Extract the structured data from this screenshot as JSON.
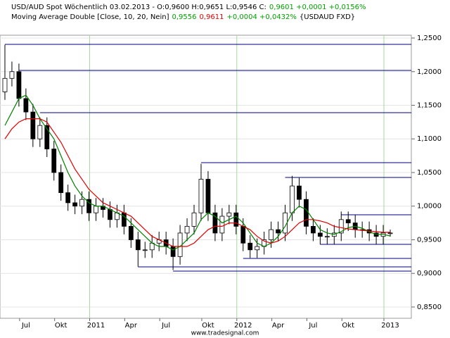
{
  "chart_data": {
    "type": "candlestick",
    "header": {
      "line1": [
        {
          "text": "USD/AUD Spot Wöchentlich  03.02.2013 - O:0,9600 H:0,9651 L:0,9546 C:",
          "color": "#000000"
        },
        {
          "text": "0,9601 +0,0001 +0,0156%",
          "color": "#00a000"
        }
      ],
      "line2": [
        {
          "text": "Moving Average Double [Close, 10, 20, Nein]",
          "color": "#000000"
        },
        {
          "text": "0,9556",
          "color": "#00a000"
        },
        {
          "text": "0,9611",
          "color": "#e00000"
        },
        {
          "text": "+0,0004 +0,0432%",
          "color": "#00a000"
        },
        {
          "text": "{USDAUD FXD}",
          "color": "#000000"
        }
      ]
    },
    "footer": "www.tradesignal.com",
    "categories": [
      null,
      null,
      null,
      "Jul",
      null,
      null,
      null,
      null,
      "Okt",
      null,
      null,
      null,
      null,
      "2011",
      null,
      null,
      null,
      null,
      "Apr",
      null,
      null,
      null,
      null,
      "Jul",
      null,
      null,
      null,
      null,
      null,
      "Okt",
      null,
      null,
      null,
      null,
      "2012",
      null,
      null,
      null,
      null,
      "Apr",
      null,
      null,
      null,
      null,
      "Jul",
      null,
      null,
      null,
      null,
      "Okt",
      null,
      null,
      null,
      null,
      null,
      "2013"
    ],
    "open": [
      1.17,
      1.19,
      1.2,
      1.16,
      1.14,
      1.1,
      1.12,
      1.085,
      1.05,
      1.02,
      1.005,
      1.0,
      1.01,
      0.99,
      1.0,
      0.995,
      0.98,
      0.99,
      0.97,
      0.95,
      0.935,
      0.935,
      0.945,
      0.95,
      0.94,
      0.925,
      0.96,
      0.97,
      0.99,
      1.04,
      0.99,
      0.96,
      0.985,
      0.99,
      0.97,
      0.945,
      0.935,
      0.94,
      0.95,
      0.965,
      0.96,
      0.99,
      1.03,
      1.01,
      0.97,
      0.96,
      0.955,
      0.955,
      0.96,
      0.98,
      0.975,
      0.965,
      0.965,
      0.96,
      0.955,
      0.96
    ],
    "high": [
      1.24,
      1.215,
      1.212,
      1.175,
      1.152,
      1.132,
      1.132,
      1.097,
      1.062,
      1.032,
      1.017,
      1.022,
      1.022,
      1.012,
      1.012,
      1.007,
      1.002,
      1.002,
      0.982,
      0.962,
      0.947,
      0.957,
      0.962,
      0.962,
      0.952,
      0.972,
      0.982,
      1.002,
      1.063,
      1.052,
      1.002,
      0.997,
      1.002,
      1.002,
      0.982,
      0.957,
      0.952,
      0.962,
      0.977,
      0.977,
      1.002,
      1.045,
      1.042,
      1.022,
      0.982,
      0.972,
      0.967,
      0.972,
      0.992,
      0.992,
      0.987,
      0.977,
      0.977,
      0.972,
      0.972,
      0.9651
    ],
    "low": [
      1.158,
      1.178,
      1.148,
      1.128,
      1.088,
      1.088,
      1.073,
      1.038,
      1.008,
      0.993,
      0.988,
      0.988,
      0.978,
      0.978,
      0.983,
      0.968,
      0.968,
      0.958,
      0.938,
      0.91,
      0.923,
      0.923,
      0.933,
      0.928,
      0.905,
      0.913,
      0.948,
      0.958,
      0.978,
      0.978,
      0.948,
      0.948,
      0.973,
      0.958,
      0.933,
      0.923,
      0.923,
      0.928,
      0.938,
      0.948,
      0.948,
      0.978,
      0.998,
      0.958,
      0.948,
      0.943,
      0.943,
      0.943,
      0.948,
      0.963,
      0.953,
      0.953,
      0.948,
      0.943,
      0.943,
      0.9546
    ],
    "close": [
      1.19,
      1.2,
      1.16,
      1.14,
      1.1,
      1.12,
      1.085,
      1.05,
      1.02,
      1.005,
      1.0,
      1.01,
      0.99,
      1.0,
      0.995,
      0.98,
      0.99,
      0.97,
      0.95,
      0.935,
      0.935,
      0.945,
      0.95,
      0.94,
      0.925,
      0.96,
      0.97,
      0.99,
      1.04,
      0.99,
      0.96,
      0.985,
      0.99,
      0.97,
      0.945,
      0.935,
      0.94,
      0.95,
      0.965,
      0.96,
      0.99,
      1.03,
      1.01,
      0.97,
      0.96,
      0.955,
      0.955,
      0.96,
      0.98,
      0.975,
      0.965,
      0.965,
      0.96,
      0.955,
      0.96,
      0.9601
    ],
    "series": [
      {
        "color": "#008000",
        "values": [
          1.12,
          1.14,
          1.16,
          1.165,
          1.15,
          1.13,
          1.115,
          1.1,
          1.075,
          1.05,
          1.03,
          1.015,
          1.005,
          1.0,
          1.0,
          0.995,
          0.99,
          0.985,
          0.975,
          0.965,
          0.955,
          0.945,
          0.94,
          0.94,
          0.935,
          0.94,
          0.95,
          0.96,
          0.98,
          0.99,
          0.985,
          0.975,
          0.98,
          0.985,
          0.975,
          0.96,
          0.945,
          0.94,
          0.945,
          0.955,
          0.97,
          0.99,
          1.0,
          0.995,
          0.98,
          0.965,
          0.96,
          0.958,
          0.962,
          0.968,
          0.97,
          0.967,
          0.962,
          0.958,
          0.958,
          0.9556
        ]
      },
      {
        "color": "#e00000",
        "values": [
          1.1,
          1.115,
          1.125,
          1.13,
          1.13,
          1.13,
          1.125,
          1.11,
          1.095,
          1.075,
          1.055,
          1.04,
          1.025,
          1.015,
          1.005,
          1.0,
          0.995,
          0.99,
          0.985,
          0.975,
          0.965,
          0.955,
          0.95,
          0.945,
          0.94,
          0.94,
          0.94,
          0.945,
          0.955,
          0.965,
          0.97,
          0.97,
          0.975,
          0.975,
          0.97,
          0.965,
          0.955,
          0.948,
          0.945,
          0.948,
          0.955,
          0.965,
          0.975,
          0.98,
          0.98,
          0.978,
          0.975,
          0.97,
          0.968,
          0.966,
          0.965,
          0.964,
          0.963,
          0.962,
          0.961,
          0.9611
        ]
      }
    ],
    "levels": [
      {
        "value": 1.2406,
        "start": 0
      },
      {
        "value": 1.2018,
        "start": 2
      },
      {
        "value": 1.139,
        "start": 5
      },
      {
        "value": 1.0647,
        "start": 28
      },
      {
        "value": 1.0427,
        "start": 40
      },
      {
        "value": 0.9872,
        "start": 48
      },
      {
        "value": 0.9432,
        "start": 45
      },
      {
        "value": 0.9222,
        "start": 34
      },
      {
        "value": 0.9097,
        "start": 19
      },
      {
        "value": 0.9034,
        "start": 24
      }
    ],
    "level_color": "#000080",
    "up_color": "#ffffff",
    "down_color": "#000000",
    "ylim": [
      0.8332,
      1.2542
    ],
    "yticks": [
      {
        "value": 0.85,
        "label": "0,8500"
      },
      {
        "value": 0.9,
        "label": "0,9000"
      },
      {
        "value": 0.95,
        "label": "0,9500"
      },
      {
        "value": 1.0,
        "label": "1,0000"
      },
      {
        "value": 1.05,
        "label": "1,0500"
      },
      {
        "value": 1.1,
        "label": "1,1000"
      },
      {
        "value": 1.15,
        "label": "1,1500"
      },
      {
        "value": 1.2,
        "label": "1,2000"
      },
      {
        "value": 1.25,
        "label": "1,2500"
      }
    ],
    "grid": true
  }
}
